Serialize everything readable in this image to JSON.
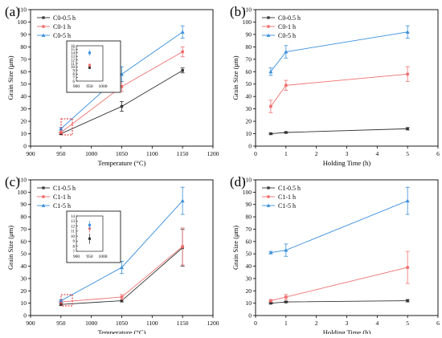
{
  "colors": {
    "black": "#333333",
    "red": "#f07070",
    "blue": "#3a8fdd",
    "inset_box": "#e02020"
  },
  "chart_data": [
    {
      "panel_label": "(a)",
      "type": "line",
      "xlabel": "Temperature (°C)",
      "ylabel": "Grain Size (μm)",
      "xlim": [
        900,
        1200
      ],
      "ylim": [
        0,
        110
      ],
      "xticks": [
        "900",
        "950",
        "1000",
        "1050",
        "1100",
        "1150",
        "1200"
      ],
      "yticks": [
        "0",
        "10",
        "20",
        "30",
        "40",
        "50",
        "60",
        "70",
        "80",
        "90",
        "100",
        "110"
      ],
      "x": [
        950,
        1050,
        1150
      ],
      "series": [
        {
          "name": "C0-0.5 h",
          "color": "#333333",
          "marker": "square",
          "values": [
            10,
            32,
            61
          ],
          "errors": [
            0.5,
            4,
            2
          ]
        },
        {
          "name": "C0-1 h",
          "color": "#f07070",
          "marker": "circle",
          "values": [
            11,
            48,
            76
          ],
          "errors": [
            0.5,
            4,
            4
          ]
        },
        {
          "name": "C0-5 h",
          "color": "#3a8fdd",
          "marker": "triangle",
          "values": [
            14,
            58,
            92
          ],
          "errors": [
            1,
            6,
            5
          ]
        }
      ],
      "legend": "top-left",
      "inset": {
        "xlim": [
          900,
          1000
        ],
        "ylim": [
          6,
          16
        ],
        "xticks": [
          "900",
          "950",
          "1000"
        ],
        "yticks": [
          "6",
          "7",
          "8",
          "9",
          "10",
          "11",
          "12",
          "13",
          "14",
          "15",
          "16"
        ],
        "points": [
          {
            "x": 950,
            "y": 9.8,
            "error": 0.4,
            "color": "#333333"
          },
          {
            "x": 950,
            "y": 10.5,
            "error": 0.5,
            "color": "#f07070"
          },
          {
            "x": 950,
            "y": 14,
            "error": 0.8,
            "color": "#3a8fdd"
          }
        ]
      }
    },
    {
      "panel_label": "(b)",
      "type": "line",
      "xlabel": "Holding Time (h)",
      "ylabel": "Grain Size (μm)",
      "xlim": [
        0,
        6
      ],
      "ylim": [
        0,
        110
      ],
      "xticks": [
        "0",
        "1",
        "2",
        "3",
        "4",
        "5",
        "6"
      ],
      "yticks": [
        "0",
        "10",
        "20",
        "30",
        "40",
        "50",
        "60",
        "70",
        "80",
        "90",
        "100",
        "110"
      ],
      "x": [
        0.5,
        1,
        5
      ],
      "series": [
        {
          "name": "C0-0.5 h",
          "color": "#333333",
          "marker": "square",
          "values": [
            10,
            11,
            14
          ],
          "errors": [
            0.5,
            0.5,
            1
          ]
        },
        {
          "name": "C0-1 h",
          "color": "#f07070",
          "marker": "circle",
          "values": [
            32,
            49,
            58
          ],
          "errors": [
            5,
            4,
            6
          ]
        },
        {
          "name": "C0-5 h",
          "color": "#3a8fdd",
          "marker": "triangle",
          "values": [
            60,
            76,
            92
          ],
          "errors": [
            3,
            5,
            5
          ]
        }
      ],
      "legend": "top-left"
    },
    {
      "panel_label": "(c)",
      "type": "line",
      "xlabel": "Temperature (°C)",
      "ylabel": "Grain Size (μm)",
      "xlim": [
        900,
        1200
      ],
      "ylim": [
        0,
        110
      ],
      "xticks": [
        "900",
        "950",
        "1000",
        "1050",
        "1100",
        "1150",
        "1200"
      ],
      "yticks": [
        "0",
        "10",
        "20",
        "30",
        "40",
        "50",
        "60",
        "70",
        "80",
        "90",
        "100",
        "110"
      ],
      "x": [
        950,
        1050,
        1150
      ],
      "series": [
        {
          "name": "C1-0.5 h",
          "color": "#333333",
          "marker": "square",
          "values": [
            9,
            12,
            55
          ],
          "errors": [
            1,
            1,
            15
          ]
        },
        {
          "name": "C1-1 h",
          "color": "#f07070",
          "marker": "circle",
          "values": [
            11,
            15,
            56
          ],
          "errors": [
            1,
            2,
            15
          ]
        },
        {
          "name": "C1-5 h",
          "color": "#3a8fdd",
          "marker": "triangle",
          "values": [
            12,
            39,
            93
          ],
          "errors": [
            1,
            5,
            11
          ]
        }
      ],
      "legend": "top-left",
      "inset": {
        "xlim": [
          900,
          1000
        ],
        "ylim": [
          7,
          14
        ],
        "xticks": [
          "900",
          "950",
          "1000"
        ],
        "yticks": [
          "7",
          "8",
          "9",
          "10",
          "11",
          "12",
          "13",
          "14"
        ],
        "points": [
          {
            "x": 950,
            "y": 9.5,
            "error": 1,
            "color": "#333333"
          },
          {
            "x": 950,
            "y": 11.5,
            "error": 0.8,
            "color": "#f07070"
          },
          {
            "x": 950,
            "y": 12.2,
            "error": 0.8,
            "color": "#3a8fdd"
          }
        ]
      }
    },
    {
      "panel_label": "(d)",
      "type": "line",
      "xlabel": "Holding Time (h)",
      "ylabel": "Grain Size (μm)",
      "xlim": [
        0,
        6
      ],
      "ylim": [
        0,
        110
      ],
      "xticks": [
        "0",
        "1",
        "2",
        "3",
        "4",
        "5",
        "6"
      ],
      "yticks": [
        "0",
        "10",
        "20",
        "30",
        "40",
        "50",
        "60",
        "70",
        "80",
        "90",
        "100",
        "110"
      ],
      "x": [
        0.5,
        1,
        5
      ],
      "series": [
        {
          "name": "C1-0.5 h",
          "color": "#333333",
          "marker": "square",
          "values": [
            10,
            11,
            12
          ],
          "errors": [
            0.5,
            0.5,
            1
          ]
        },
        {
          "name": "C1-1 h",
          "color": "#f07070",
          "marker": "circle",
          "values": [
            12,
            15,
            39
          ],
          "errors": [
            1,
            2,
            13
          ]
        },
        {
          "name": "C1-5 h",
          "color": "#3a8fdd",
          "marker": "triangle",
          "values": [
            51,
            53,
            93
          ],
          "errors": [
            1,
            5,
            11
          ]
        }
      ],
      "legend": "top-left"
    }
  ]
}
